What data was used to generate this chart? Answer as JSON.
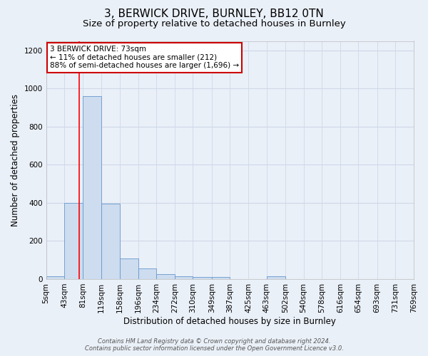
{
  "title": "3, BERWICK DRIVE, BURNLEY, BB12 0TN",
  "subtitle": "Size of property relative to detached houses in Burnley",
  "xlabel": "Distribution of detached houses by size in Burnley",
  "ylabel": "Number of detached properties",
  "bin_labels": [
    "5sqm",
    "43sqm",
    "81sqm",
    "119sqm",
    "158sqm",
    "196sqm",
    "234sqm",
    "272sqm",
    "310sqm",
    "349sqm",
    "387sqm",
    "425sqm",
    "463sqm",
    "502sqm",
    "540sqm",
    "578sqm",
    "616sqm",
    "654sqm",
    "693sqm",
    "731sqm",
    "769sqm"
  ],
  "bin_edges": [
    5,
    43,
    81,
    119,
    158,
    196,
    234,
    272,
    310,
    349,
    387,
    425,
    463,
    502,
    540,
    578,
    616,
    654,
    693,
    731,
    769
  ],
  "bar_heights": [
    15,
    400,
    960,
    395,
    110,
    55,
    25,
    15,
    10,
    10,
    0,
    0,
    15,
    0,
    0,
    0,
    0,
    0,
    0,
    0
  ],
  "bar_color": "#cddcef",
  "bar_edgecolor": "#6699cc",
  "red_line_x": 73,
  "ylim": [
    0,
    1250
  ],
  "yticks": [
    0,
    200,
    400,
    600,
    800,
    1000,
    1200
  ],
  "annotation_text": "3 BERWICK DRIVE: 73sqm\n← 11% of detached houses are smaller (212)\n88% of semi-detached houses are larger (1,696) →",
  "annotation_box_facecolor": "#ffffff",
  "annotation_box_edgecolor": "#cc0000",
  "footer_line1": "Contains HM Land Registry data © Crown copyright and database right 2024.",
  "footer_line2": "Contains public sector information licensed under the Open Government Licence v3.0.",
  "background_color": "#eaf0f8",
  "grid_color": "#d0d8e8",
  "title_fontsize": 11,
  "subtitle_fontsize": 9.5,
  "axis_label_fontsize": 8.5,
  "tick_fontsize": 7.5,
  "annotation_fontsize": 7.5,
  "footer_fontsize": 6
}
